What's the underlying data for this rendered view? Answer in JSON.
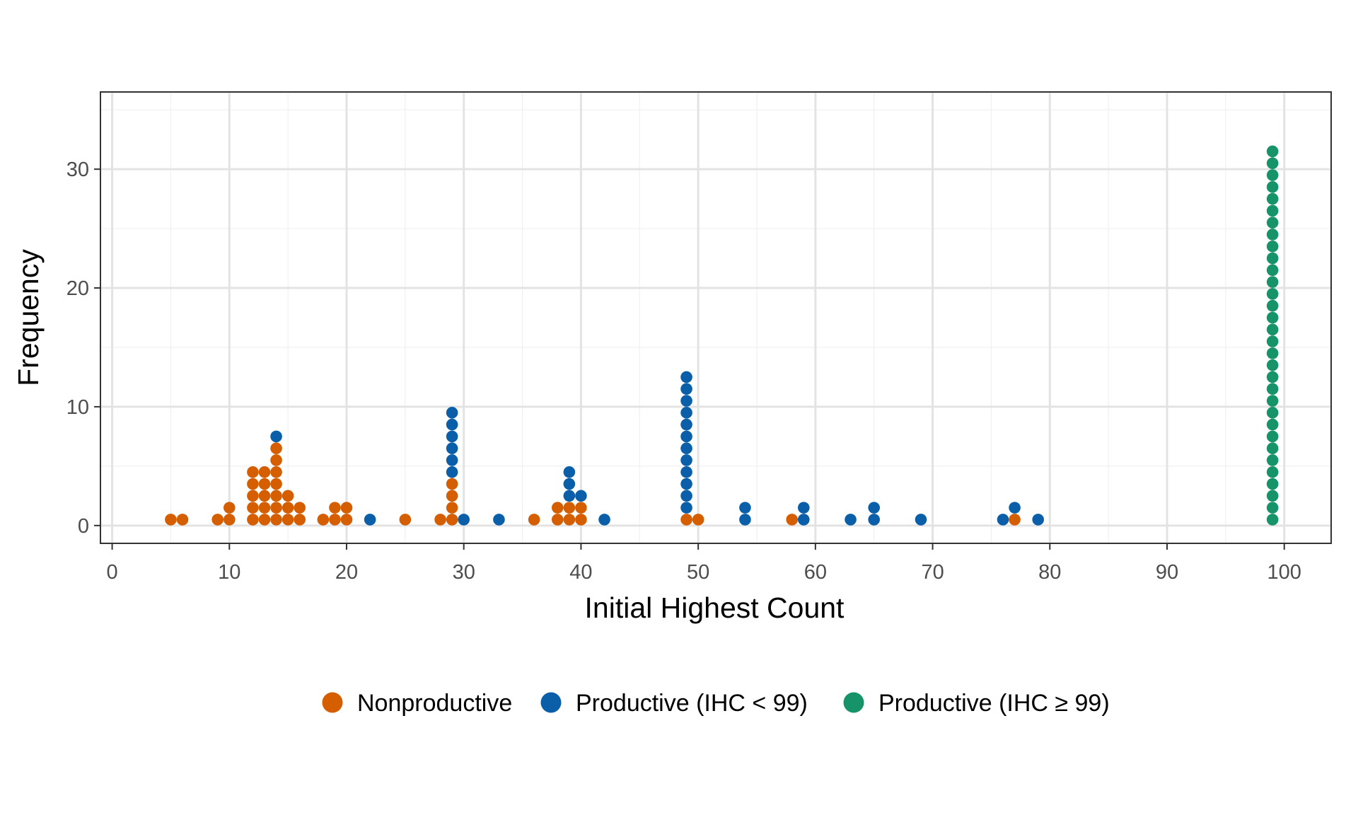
{
  "chart_data": {
    "type": "scatter",
    "subtype": "dotplot",
    "title": "",
    "xlabel": "Initial Highest Count",
    "ylabel": "Frequency",
    "xlim": [
      -1,
      104
    ],
    "ylim": [
      -1.5,
      36.5
    ],
    "xticks": [
      0,
      10,
      20,
      30,
      40,
      50,
      60,
      70,
      80,
      90,
      100
    ],
    "yticks": [
      0,
      10,
      20,
      30
    ],
    "grid": true,
    "legend_position": "bottom",
    "series": [
      {
        "name": "Nonproductive",
        "color": "#D55E00",
        "bins": [
          [
            5,
            1
          ],
          [
            6,
            1
          ],
          [
            9,
            1
          ],
          [
            10,
            2
          ],
          [
            12,
            5
          ],
          [
            13,
            5
          ],
          [
            14,
            7
          ],
          [
            15,
            3
          ],
          [
            16,
            2
          ],
          [
            18,
            1
          ],
          [
            19,
            2
          ],
          [
            20,
            2
          ],
          [
            25,
            1
          ],
          [
            28,
            1
          ],
          [
            29,
            4
          ],
          [
            36,
            1
          ],
          [
            38,
            2
          ],
          [
            39,
            2
          ],
          [
            40,
            2
          ],
          [
            49,
            1
          ],
          [
            50,
            1
          ],
          [
            58,
            1
          ],
          [
            77,
            1
          ]
        ]
      },
      {
        "name": "Productive (IHC < 99)",
        "color": "#0A5FA8",
        "bins": [
          [
            14,
            1
          ],
          [
            22,
            1
          ],
          [
            29,
            6
          ],
          [
            30,
            1
          ],
          [
            33,
            1
          ],
          [
            39,
            3
          ],
          [
            40,
            1
          ],
          [
            42,
            1
          ],
          [
            49,
            12
          ],
          [
            54,
            2
          ],
          [
            59,
            2
          ],
          [
            63,
            1
          ],
          [
            65,
            2
          ],
          [
            69,
            1
          ],
          [
            76,
            1
          ],
          [
            77,
            1
          ],
          [
            79,
            1
          ]
        ]
      },
      {
        "name": "Productive (IHC ≥ 99)",
        "color": "#17936A",
        "bins": [
          [
            99,
            32
          ]
        ]
      }
    ]
  }
}
